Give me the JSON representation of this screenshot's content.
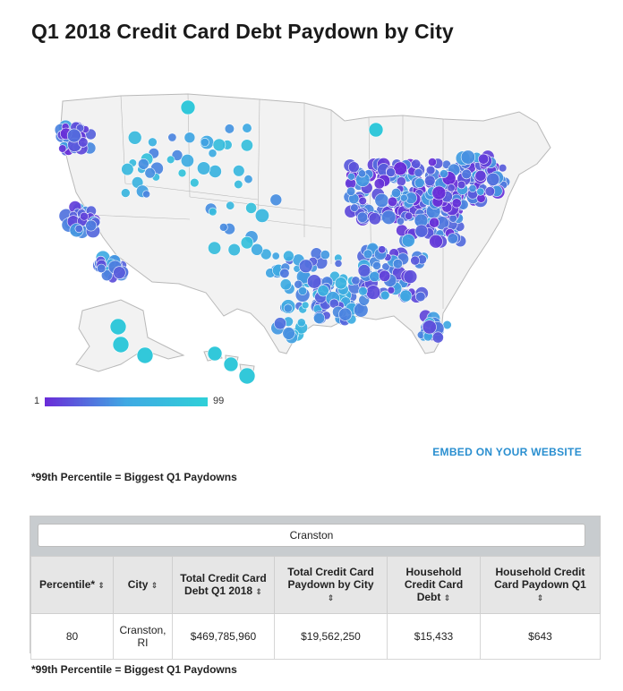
{
  "title": "Q1 2018 Credit Card Debt Paydown by City",
  "legend": {
    "min_label": "1",
    "max_label": "99",
    "color_low": "#6a2bd8",
    "color_mid": "#3fa9e3",
    "color_high": "#2fd0d8"
  },
  "map": {
    "region": "United States",
    "land_color": "#f2f2f2",
    "border_color": "#b9b9b9"
  },
  "embed_link": "EMBED ON YOUR WEBSITE",
  "note_top": "*99th Percentile = Biggest Q1 Paydowns",
  "note_bottom": "*99th Percentile = Biggest Q1 Paydowns",
  "search": {
    "value": "Cranston"
  },
  "table": {
    "sort_glyph": "⇕",
    "headers": [
      "Percentile*",
      "City",
      "Total Credit Card Debt Q1 2018",
      "Total Credit Card Paydown by City",
      "Household Credit Card Debt",
      "Household Credit Card Paydown Q1"
    ],
    "rows": [
      [
        "80",
        "Cranston, RI",
        "$469,785,960",
        "$19,562,250",
        "$15,433",
        "$643"
      ]
    ]
  }
}
